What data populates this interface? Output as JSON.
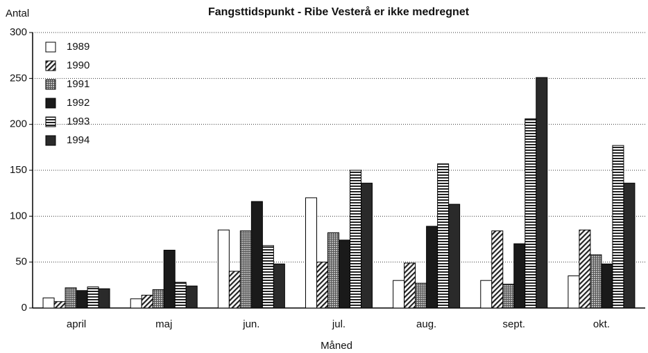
{
  "chart_data": {
    "type": "bar",
    "title": "Fangsttidspunkt - Ribe Vesterå er ikke medregnet",
    "y_label": "Antal",
    "x_label": "Måned",
    "categories": [
      "april",
      "maj",
      "jun.",
      "jul.",
      "aug.",
      "sept.",
      "okt."
    ],
    "series": [
      {
        "name": "1989",
        "color": "#ffffff",
        "pattern": "plain",
        "values": [
          11,
          10,
          85,
          120,
          30,
          30,
          35
        ]
      },
      {
        "name": "1990",
        "color": "#222222",
        "pattern": "hatch",
        "values": [
          7,
          14,
          40,
          50,
          49,
          84,
          85
        ]
      },
      {
        "name": "1991",
        "color": "#555555",
        "pattern": "grid",
        "values": [
          22,
          20,
          84,
          82,
          27,
          26,
          58
        ]
      },
      {
        "name": "1992",
        "color": "#1a1a1a",
        "pattern": "solid",
        "values": [
          19,
          63,
          116,
          74,
          89,
          70,
          48
        ]
      },
      {
        "name": "1993",
        "color": "#222222",
        "pattern": "stripes",
        "values": [
          23,
          28,
          68,
          150,
          157,
          206,
          177
        ]
      },
      {
        "name": "1994",
        "color": "#2a2a2a",
        "pattern": "solid",
        "values": [
          21,
          24,
          48,
          136,
          113,
          251,
          136
        ]
      }
    ],
    "ylim": [
      0,
      300
    ],
    "yticks": [
      0,
      50,
      100,
      150,
      200,
      250,
      300
    ],
    "grid": true,
    "legend": "top-left"
  }
}
